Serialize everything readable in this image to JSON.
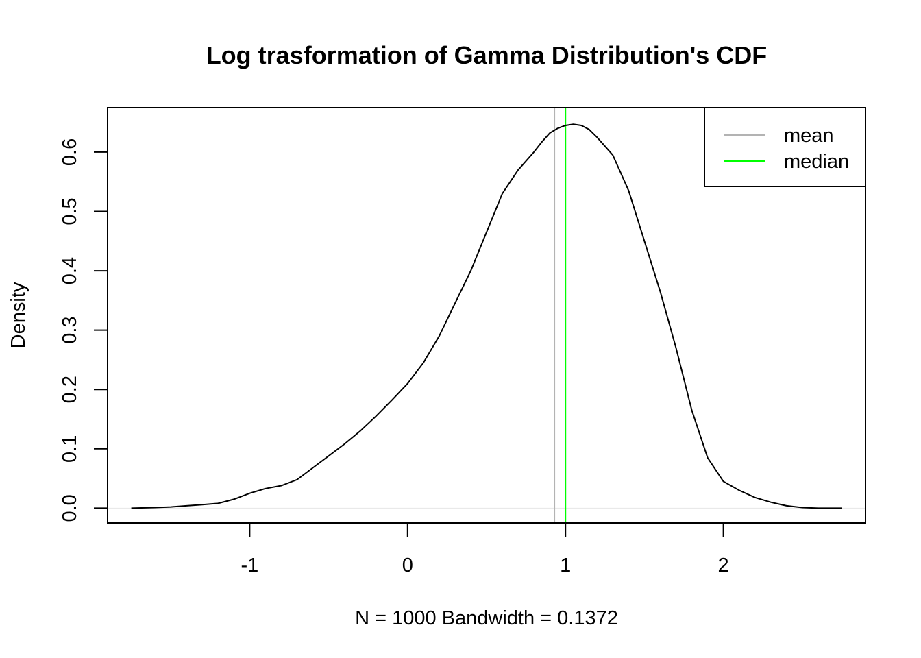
{
  "chart_data": {
    "type": "line",
    "title": "Log trasformation of Gamma Distribution's CDF",
    "xlabel": "N = 1000   Bandwidth = 0.1372",
    "ylabel": "Density",
    "xlim": [
      -1.9,
      2.9
    ],
    "ylim": [
      -0.025,
      0.675
    ],
    "x_ticks": [
      -1,
      0,
      1,
      2
    ],
    "x_tick_labels": [
      "-1",
      "0",
      "1",
      "2"
    ],
    "y_ticks": [
      0.0,
      0.1,
      0.2,
      0.3,
      0.4,
      0.5,
      0.6
    ],
    "y_tick_labels": [
      "0.0",
      "0.1",
      "0.2",
      "0.3",
      "0.4",
      "0.5",
      "0.6"
    ],
    "grid": false,
    "legend_position": "top-right",
    "series": [
      {
        "color": "#000000",
        "x": [
          -1.75,
          -1.6,
          -1.5,
          -1.4,
          -1.3,
          -1.2,
          -1.1,
          -1.0,
          -0.9,
          -0.8,
          -0.7,
          -0.6,
          -0.5,
          -0.4,
          -0.3,
          -0.2,
          -0.1,
          0.0,
          0.1,
          0.2,
          0.3,
          0.4,
          0.5,
          0.6,
          0.7,
          0.75,
          0.8,
          0.85,
          0.9,
          0.95,
          1.0,
          1.05,
          1.1,
          1.15,
          1.2,
          1.3,
          1.4,
          1.5,
          1.6,
          1.7,
          1.8,
          1.9,
          2.0,
          2.1,
          2.2,
          2.3,
          2.4,
          2.5,
          2.6,
          2.7,
          2.75
        ],
        "y": [
          0.0,
          0.001,
          0.002,
          0.004,
          0.006,
          0.008,
          0.015,
          0.025,
          0.033,
          0.038,
          0.048,
          0.068,
          0.088,
          0.108,
          0.13,
          0.155,
          0.182,
          0.21,
          0.245,
          0.29,
          0.345,
          0.4,
          0.465,
          0.53,
          0.57,
          0.585,
          0.6,
          0.617,
          0.632,
          0.64,
          0.645,
          0.647,
          0.645,
          0.638,
          0.625,
          0.595,
          0.535,
          0.45,
          0.365,
          0.27,
          0.165,
          0.085,
          0.045,
          0.03,
          0.018,
          0.01,
          0.004,
          0.001,
          0.0,
          0.0,
          0.0
        ]
      }
    ],
    "reference_lines": [
      {
        "name": "mean",
        "x": 0.93,
        "color": "#b3b3b3"
      },
      {
        "name": "median",
        "x": 1.0,
        "color": "#00ff00"
      }
    ],
    "baseline": {
      "y": 0.0,
      "color": "#e6e6e6"
    }
  }
}
